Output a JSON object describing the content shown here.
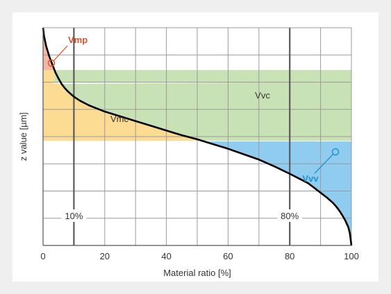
{
  "chart_data": {
    "type": "line",
    "title": "",
    "xlabel": "Material ratio [%]",
    "ylabel": "z value [µm]",
    "xlim": [
      0,
      100
    ],
    "x_ticks": [
      0,
      20,
      40,
      60,
      80,
      100
    ],
    "grid": true,
    "series": [
      {
        "x": [
          0,
          0.3,
          1,
          2,
          3,
          4,
          5,
          6,
          7,
          8,
          10,
          12,
          15,
          20,
          25,
          30,
          35,
          40,
          45,
          50,
          55,
          60,
          65,
          70,
          75,
          80,
          83,
          86,
          88,
          90,
          92,
          94,
          95,
          96,
          97,
          98,
          99,
          99.5,
          100
        ],
        "z": [
          322,
          310,
          295,
          280,
          268,
          256,
          247,
          239,
          233,
          228,
          220,
          214,
          207,
          198,
          191,
          184,
          177,
          170,
          163,
          157,
          150,
          143,
          135,
          127,
          117,
          106,
          99,
          92,
          85,
          78,
          71,
          63,
          58,
          52,
          45,
          37,
          27,
          18,
          0
        ]
      }
    ],
    "threshold_lines": [
      {
        "x": 10,
        "label": "10%"
      },
      {
        "x": 80,
        "label": "80%"
      }
    ],
    "regions": [
      {
        "name": "Vmp",
        "label": "Vmp",
        "color": "#f4b7a6",
        "label_color": "#e4502b"
      },
      {
        "name": "Vmc",
        "label": "Vmc",
        "color": "#fbdc92",
        "label_color": "#333333"
      },
      {
        "name": "Vvc",
        "label": "Vvc",
        "color": "#c9e2b5",
        "label_color": "#333333"
      },
      {
        "name": "Vvv",
        "label": "Vvv",
        "color": "#8fccef",
        "label_color": "#1f94cf"
      }
    ],
    "curve_color": "#000000"
  }
}
